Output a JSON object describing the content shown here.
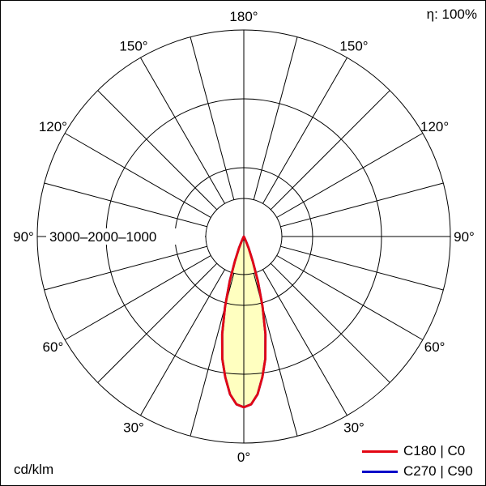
{
  "meta": {
    "efficiency_label": "η: 100%",
    "unit_label": "cd/klm"
  },
  "legend": [
    {
      "label": "C180 | C0",
      "color": "#e30613"
    },
    {
      "label": "C270 | C90",
      "color": "#0000c8"
    }
  ],
  "chart_data": {
    "type": "polar",
    "subtype": "luminous-intensity-distribution",
    "unit": "cd/klm",
    "efficiency_percent": 100,
    "max_value": 3000,
    "ring_values": [
      1000,
      2000,
      3000
    ],
    "ring_label_text": "3000–2000–1000",
    "angle_labels_deg": [
      0,
      30,
      60,
      90,
      120,
      150,
      180
    ],
    "spoke_step_deg": 15,
    "grid_color": "#000000",
    "fill_color": "#ffffc0",
    "series": [
      {
        "name": "c180-c0",
        "label": "C180 | C0",
        "color": "#e30613",
        "gamma_deg": [
          0,
          2.5,
          5,
          7.5,
          10,
          12.5,
          15,
          17.5,
          20,
          22.5,
          25,
          27.5,
          30,
          45,
          60,
          75,
          90,
          105,
          120,
          135,
          150,
          165,
          180
        ],
        "values": [
          2480,
          2440,
          2300,
          2060,
          1800,
          1450,
          1050,
          680,
          380,
          180,
          70,
          20,
          0,
          0,
          0,
          0,
          0,
          0,
          0,
          0,
          0,
          0,
          0
        ]
      },
      {
        "name": "c270-c90",
        "label": "C270 | C90",
        "color": "#0000c8",
        "gamma_deg": [
          0,
          2.5,
          5,
          7.5,
          10,
          12.5,
          15,
          17.5,
          20,
          22.5,
          25,
          27.5,
          30,
          45,
          60,
          75,
          90,
          105,
          120,
          135,
          150,
          165,
          180
        ],
        "values": [
          2480,
          2440,
          2300,
          2060,
          1800,
          1450,
          1050,
          680,
          380,
          180,
          70,
          20,
          0,
          0,
          0,
          0,
          0,
          0,
          0,
          0,
          0,
          0,
          0
        ]
      }
    ]
  }
}
